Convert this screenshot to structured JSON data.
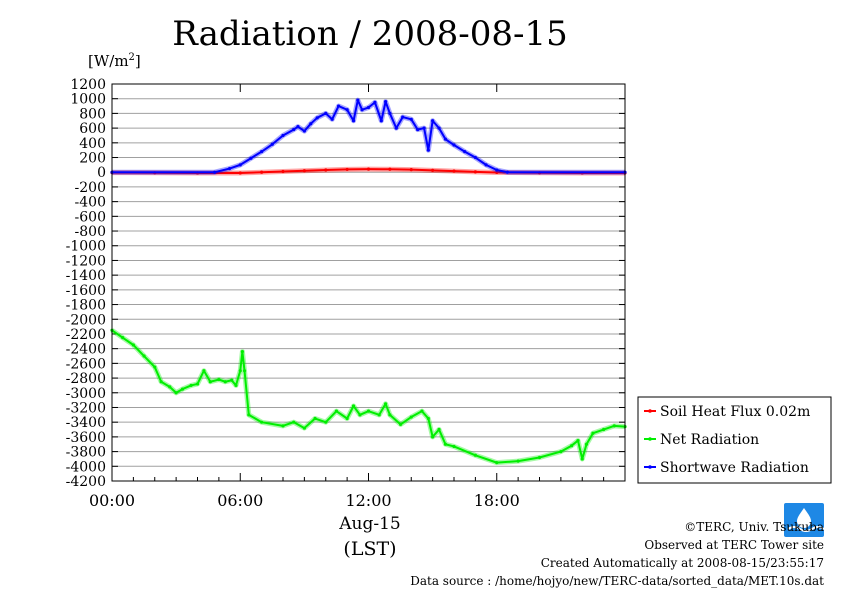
{
  "title": "Radiation / 2008-08-15",
  "unit": "[W/m",
  "unit_sup": "2",
  "unit_close": "]",
  "x_date": "Aug-15",
  "x_unit": "(LST)",
  "footer": {
    "copyright": "©TERC, Univ. Tsukuba",
    "observed": "Observed at TERC Tower site",
    "created": "Created Automatically at 2008-08-15/23:55:17",
    "source": "Data source : /home/hojyo/new/TERC-data/sorted_data/MET.10s.dat"
  },
  "colors": {
    "soil": "#ff0000",
    "net": "#00ee00",
    "shortwave": "#0000ff",
    "grid": "#a0a0a0",
    "logo": "#1e88e5"
  },
  "chart_data": {
    "type": "line",
    "xlim": [
      0,
      24
    ],
    "ylim": [
      -4200,
      1200
    ],
    "yticks": [
      1200,
      1000,
      800,
      600,
      400,
      200,
      0,
      -200,
      -400,
      -600,
      -800,
      -1000,
      -1200,
      -1400,
      -1600,
      -1800,
      -2000,
      -2200,
      -2400,
      -2600,
      -2800,
      -3000,
      -3200,
      -3400,
      -3600,
      -3800,
      -4000,
      -4200
    ],
    "xticks": [
      {
        "value": 0,
        "label": "00:00"
      },
      {
        "value": 6,
        "label": "06:00"
      },
      {
        "value": 12,
        "label": "12:00"
      },
      {
        "value": 18,
        "label": "18:00"
      }
    ],
    "legend_position": "right",
    "series": [
      {
        "name": "Soil Heat Flux 0.02m",
        "color_key": "soil",
        "points": [
          [
            0,
            -5
          ],
          [
            2,
            -8
          ],
          [
            4,
            -10
          ],
          [
            6,
            -10
          ],
          [
            7,
            0
          ],
          [
            8,
            10
          ],
          [
            9,
            20
          ],
          [
            10,
            30
          ],
          [
            11,
            38
          ],
          [
            12,
            42
          ],
          [
            13,
            40
          ],
          [
            14,
            35
          ],
          [
            15,
            25
          ],
          [
            16,
            15
          ],
          [
            17,
            5
          ],
          [
            18,
            -3
          ],
          [
            20,
            -8
          ],
          [
            22,
            -10
          ],
          [
            24,
            -10
          ]
        ]
      },
      {
        "name": "Net Radiation",
        "color_key": "net",
        "points": [
          [
            0,
            -2150
          ],
          [
            0.5,
            -2250
          ],
          [
            1,
            -2350
          ],
          [
            1.5,
            -2500
          ],
          [
            2,
            -2650
          ],
          [
            2.3,
            -2850
          ],
          [
            2.7,
            -2920
          ],
          [
            3,
            -3000
          ],
          [
            3.3,
            -2950
          ],
          [
            3.7,
            -2900
          ],
          [
            4,
            -2880
          ],
          [
            4.3,
            -2700
          ],
          [
            4.6,
            -2850
          ],
          [
            5,
            -2820
          ],
          [
            5.3,
            -2850
          ],
          [
            5.6,
            -2830
          ],
          [
            5.8,
            -2900
          ],
          [
            6,
            -2700
          ],
          [
            6.1,
            -2440
          ],
          [
            6.2,
            -2700
          ],
          [
            6.4,
            -3300
          ],
          [
            7,
            -3400
          ],
          [
            8,
            -3450
          ],
          [
            8.5,
            -3400
          ],
          [
            9,
            -3480
          ],
          [
            9.5,
            -3350
          ],
          [
            10,
            -3400
          ],
          [
            10.5,
            -3250
          ],
          [
            11,
            -3350
          ],
          [
            11.3,
            -3180
          ],
          [
            11.6,
            -3300
          ],
          [
            12,
            -3250
          ],
          [
            12.5,
            -3300
          ],
          [
            12.8,
            -3150
          ],
          [
            13,
            -3300
          ],
          [
            13.5,
            -3430
          ],
          [
            14,
            -3330
          ],
          [
            14.5,
            -3250
          ],
          [
            14.8,
            -3350
          ],
          [
            15,
            -3600
          ],
          [
            15.3,
            -3500
          ],
          [
            15.6,
            -3700
          ],
          [
            16,
            -3730
          ],
          [
            17,
            -3850
          ],
          [
            18,
            -3950
          ],
          [
            19,
            -3930
          ],
          [
            20,
            -3880
          ],
          [
            21,
            -3800
          ],
          [
            21.5,
            -3720
          ],
          [
            21.8,
            -3650
          ],
          [
            22,
            -3900
          ],
          [
            22.2,
            -3700
          ],
          [
            22.5,
            -3550
          ],
          [
            23,
            -3500
          ],
          [
            23.5,
            -3450
          ],
          [
            24,
            -3460
          ]
        ]
      },
      {
        "name": "Shortwave Radiation",
        "color_key": "shortwave",
        "points": [
          [
            0,
            0
          ],
          [
            4.8,
            0
          ],
          [
            5.5,
            50
          ],
          [
            6,
            100
          ],
          [
            6.5,
            190
          ],
          [
            7,
            280
          ],
          [
            7.5,
            380
          ],
          [
            8,
            500
          ],
          [
            8.5,
            580
          ],
          [
            8.7,
            620
          ],
          [
            9,
            560
          ],
          [
            9.3,
            660
          ],
          [
            9.6,
            740
          ],
          [
            10,
            800
          ],
          [
            10.3,
            720
          ],
          [
            10.6,
            900
          ],
          [
            11,
            850
          ],
          [
            11.3,
            700
          ],
          [
            11.5,
            980
          ],
          [
            11.7,
            850
          ],
          [
            12,
            880
          ],
          [
            12.3,
            950
          ],
          [
            12.6,
            700
          ],
          [
            12.8,
            960
          ],
          [
            13,
            800
          ],
          [
            13.3,
            600
          ],
          [
            13.6,
            750
          ],
          [
            14,
            720
          ],
          [
            14.3,
            580
          ],
          [
            14.6,
            600
          ],
          [
            14.8,
            300
          ],
          [
            15,
            700
          ],
          [
            15.3,
            600
          ],
          [
            15.6,
            450
          ],
          [
            16,
            370
          ],
          [
            16.5,
            280
          ],
          [
            17,
            200
          ],
          [
            17.5,
            100
          ],
          [
            18,
            30
          ],
          [
            18.5,
            0
          ],
          [
            24,
            0
          ]
        ]
      }
    ]
  }
}
